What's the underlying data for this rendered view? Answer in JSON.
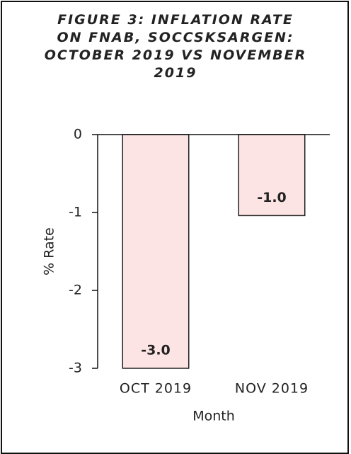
{
  "chart_data": {
    "type": "bar",
    "title": "FIGURE 3: INFLATION RATE ON FNAB, SOCCSKSARGEN: OCTOBER 2019 VS NOVEMBER 2019",
    "categories": [
      "OCT 2019",
      "NOV 2019"
    ],
    "values": [
      -3.0,
      -1.04
    ],
    "value_labels": [
      "-3.0",
      "-1.0"
    ],
    "color": "#fde4e4",
    "edge_color": "#222222",
    "ylim": [
      -3,
      0
    ],
    "yticks": [
      0,
      -1,
      -2,
      -3
    ],
    "xlabel": "Month",
    "ylabel": "% Rate",
    "grid": false
  }
}
